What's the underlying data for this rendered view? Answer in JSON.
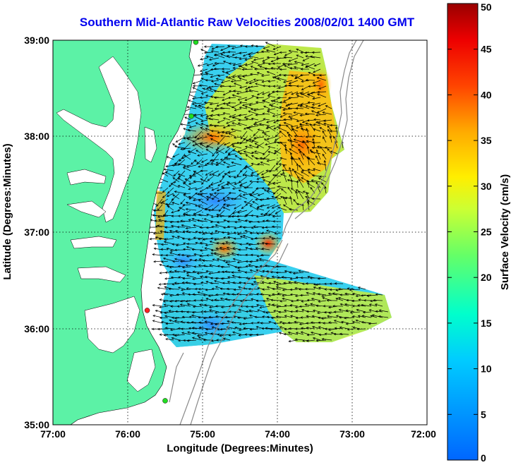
{
  "title": "Southern Mid-Atlantic Raw Velocities 2008/02/01 1400 GMT",
  "x_axis": {
    "label": "Longitude (Degrees:Minutes)",
    "ticks": [
      "77:00",
      "76:00",
      "75:00",
      "74:00",
      "73:00",
      "72:00"
    ]
  },
  "y_axis": {
    "label": "Latitude (Degrees:Minutes)",
    "ticks": [
      "39:00",
      "38:00",
      "37:00",
      "36:00",
      "35:00"
    ]
  },
  "colorbar": {
    "label": "Surface Velocity (cm/s)",
    "ticks": [
      "50",
      "45",
      "40",
      "35",
      "30",
      "25",
      "20",
      "15",
      "10",
      "5",
      "0"
    ],
    "range": [
      0,
      50
    ],
    "colormap": "jet"
  },
  "colors": {
    "land": "#5cf2a6",
    "water": "#ffffff",
    "title": "#0000ee",
    "grid": "#000000"
  },
  "map": {
    "lon_range": [
      -77,
      -72
    ],
    "lat_range": [
      35,
      39
    ],
    "grid": "dotted",
    "stations": [
      {
        "lon": -75.09,
        "lat": 38.98,
        "color": "#22dd22"
      },
      {
        "lon": -75.15,
        "lat": 38.21,
        "color": "#22dd22"
      },
      {
        "lon": -75.74,
        "lat": 36.19,
        "color": "#ff2222"
      },
      {
        "lon": -75.5,
        "lat": 35.25,
        "color": "#22dd22"
      }
    ]
  }
}
